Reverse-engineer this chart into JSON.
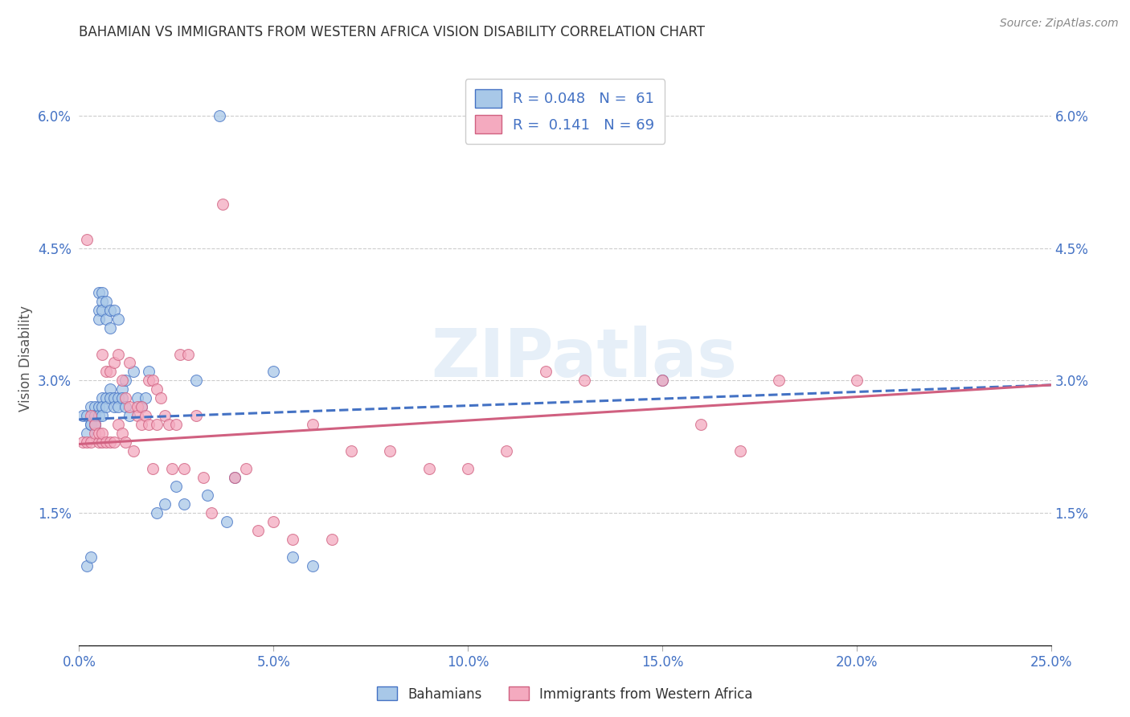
{
  "title": "BAHAMIAN VS IMMIGRANTS FROM WESTERN AFRICA VISION DISABILITY CORRELATION CHART",
  "source": "Source: ZipAtlas.com",
  "ylabel": "Vision Disability",
  "xlim": [
    0.0,
    0.25
  ],
  "ylim": [
    0.0,
    0.065
  ],
  "xticks": [
    0.0,
    0.05,
    0.1,
    0.15,
    0.2,
    0.25
  ],
  "yticks": [
    0.0,
    0.015,
    0.03,
    0.045,
    0.06
  ],
  "ytick_labels": [
    "",
    "1.5%",
    "3.0%",
    "4.5%",
    "6.0%"
  ],
  "xtick_labels": [
    "0.0%",
    "5.0%",
    "10.0%",
    "15.0%",
    "20.0%",
    "25.0%"
  ],
  "color_bahamian": "#a8c8e8",
  "color_western_africa": "#f4aabf",
  "color_line_bahamian": "#4472c4",
  "color_line_western_africa": "#d06080",
  "color_axis_labels": "#4472c4",
  "watermark": "ZIPatlas",
  "bahamian_x": [
    0.001,
    0.002,
    0.002,
    0.002,
    0.003,
    0.003,
    0.003,
    0.003,
    0.004,
    0.004,
    0.004,
    0.004,
    0.004,
    0.005,
    0.005,
    0.005,
    0.005,
    0.005,
    0.006,
    0.006,
    0.006,
    0.006,
    0.006,
    0.006,
    0.007,
    0.007,
    0.007,
    0.007,
    0.008,
    0.008,
    0.008,
    0.008,
    0.009,
    0.009,
    0.009,
    0.01,
    0.01,
    0.01,
    0.011,
    0.011,
    0.012,
    0.012,
    0.013,
    0.014,
    0.015,
    0.016,
    0.017,
    0.018,
    0.02,
    0.022,
    0.025,
    0.027,
    0.03,
    0.033,
    0.036,
    0.038,
    0.04,
    0.05,
    0.055,
    0.06,
    0.15
  ],
  "bahamian_y": [
    0.026,
    0.024,
    0.026,
    0.009,
    0.027,
    0.025,
    0.025,
    0.01,
    0.026,
    0.025,
    0.027,
    0.025,
    0.026,
    0.04,
    0.038,
    0.037,
    0.027,
    0.026,
    0.04,
    0.039,
    0.038,
    0.028,
    0.027,
    0.026,
    0.039,
    0.037,
    0.028,
    0.027,
    0.038,
    0.036,
    0.029,
    0.028,
    0.038,
    0.028,
    0.027,
    0.037,
    0.028,
    0.027,
    0.029,
    0.028,
    0.03,
    0.027,
    0.026,
    0.031,
    0.028,
    0.027,
    0.028,
    0.031,
    0.015,
    0.016,
    0.018,
    0.016,
    0.03,
    0.017,
    0.06,
    0.014,
    0.019,
    0.031,
    0.01,
    0.009,
    0.03
  ],
  "western_africa_x": [
    0.001,
    0.002,
    0.002,
    0.003,
    0.003,
    0.004,
    0.004,
    0.005,
    0.005,
    0.006,
    0.006,
    0.006,
    0.007,
    0.007,
    0.008,
    0.008,
    0.009,
    0.009,
    0.01,
    0.01,
    0.011,
    0.011,
    0.012,
    0.012,
    0.013,
    0.013,
    0.014,
    0.015,
    0.015,
    0.016,
    0.016,
    0.017,
    0.018,
    0.018,
    0.019,
    0.019,
    0.02,
    0.02,
    0.021,
    0.022,
    0.023,
    0.024,
    0.025,
    0.026,
    0.027,
    0.028,
    0.03,
    0.032,
    0.034,
    0.037,
    0.04,
    0.043,
    0.046,
    0.05,
    0.055,
    0.06,
    0.065,
    0.07,
    0.08,
    0.09,
    0.1,
    0.11,
    0.12,
    0.13,
    0.15,
    0.16,
    0.17,
    0.18,
    0.2
  ],
  "western_africa_y": [
    0.023,
    0.023,
    0.046,
    0.023,
    0.026,
    0.024,
    0.025,
    0.023,
    0.024,
    0.023,
    0.024,
    0.033,
    0.023,
    0.031,
    0.023,
    0.031,
    0.023,
    0.032,
    0.025,
    0.033,
    0.024,
    0.03,
    0.028,
    0.023,
    0.032,
    0.027,
    0.022,
    0.027,
    0.026,
    0.027,
    0.025,
    0.026,
    0.03,
    0.025,
    0.03,
    0.02,
    0.029,
    0.025,
    0.028,
    0.026,
    0.025,
    0.02,
    0.025,
    0.033,
    0.02,
    0.033,
    0.026,
    0.019,
    0.015,
    0.05,
    0.019,
    0.02,
    0.013,
    0.014,
    0.012,
    0.025,
    0.012,
    0.022,
    0.022,
    0.02,
    0.02,
    0.022,
    0.031,
    0.03,
    0.03,
    0.025,
    0.022,
    0.03,
    0.03
  ],
  "line_bahamian_x0": 0.0,
  "line_bahamian_y0": 0.0256,
  "line_bahamian_x1": 0.25,
  "line_bahamian_y1": 0.0295,
  "line_western_x0": 0.0,
  "line_western_y0": 0.0228,
  "line_western_x1": 0.25,
  "line_western_y1": 0.0295
}
